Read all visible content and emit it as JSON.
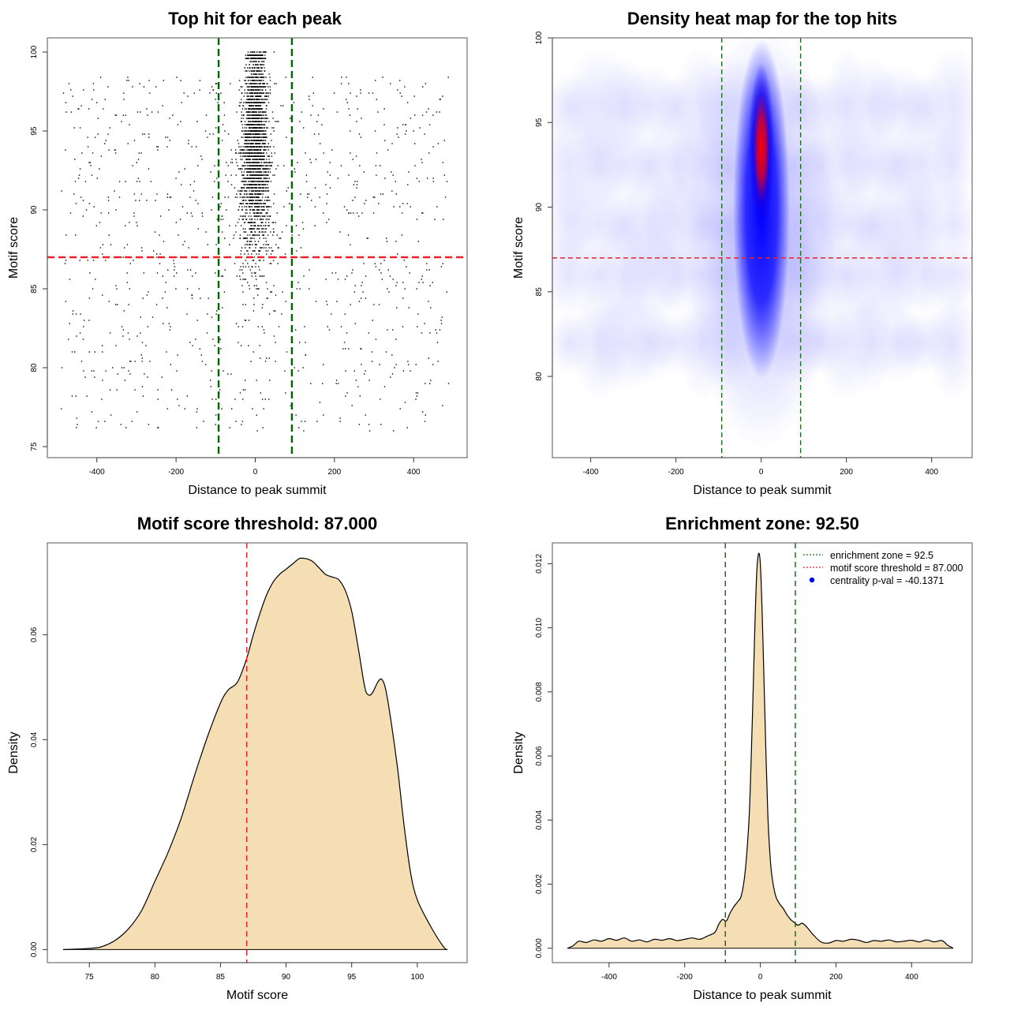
{
  "chart_data": [
    {
      "type": "scatter",
      "title": "Top hit for each peak",
      "xlabel": "Distance to peak summit",
      "ylabel": "Motif score",
      "xlim": [
        -525,
        535
      ],
      "ylim": [
        74.3,
        100.9
      ],
      "xticks": [
        -400,
        -200,
        0,
        200,
        400
      ],
      "yticks": [
        75,
        80,
        85,
        90,
        95,
        100
      ],
      "ref_lines": {
        "enrichment_zone_x": [
          -92.5,
          92.5
        ],
        "enrichment_line_color": "#006400",
        "score_threshold_y": 87,
        "threshold_line_color": "#e8232b"
      },
      "point_color": "#000000",
      "point_groups": [
        {
          "name": "central",
          "x_center": 0,
          "x_spread": 42,
          "y_range": [
            78,
            100
          ],
          "count": 2600
        },
        {
          "name": "background",
          "x_range": [
            -490,
            490
          ],
          "y_range": [
            76,
            100
          ],
          "count": 1000
        }
      ]
    },
    {
      "type": "heatmap",
      "title": "Density heat map for the top hits",
      "xlabel": "Distance to peak summit",
      "ylabel": "Motif score",
      "xlim": [
        -490,
        495
      ],
      "ylim": [
        75.2,
        100
      ],
      "xticks": [
        -400,
        -200,
        0,
        200,
        400
      ],
      "yticks": [
        80,
        85,
        90,
        95,
        100
      ],
      "ref_lines": {
        "enrichment_zone_x": [
          -92.5,
          92.5
        ],
        "enrichment_line_color": "#1d6b1d",
        "score_threshold_y": 87,
        "threshold_line_color": "#e8232b"
      },
      "color_scale": [
        "#ffffff",
        "#0000ff",
        "#ff0000"
      ],
      "density_peak": {
        "x": 0,
        "y": 93.5
      }
    },
    {
      "type": "area",
      "title": "Motif score threshold: 87.000",
      "xlabel": "Motif score",
      "ylabel": "Density",
      "xlim": [
        71.8,
        103.8
      ],
      "ylim": [
        -0.0025,
        0.0775
      ],
      "xticks": [
        75,
        80,
        85,
        90,
        95,
        100
      ],
      "yticks": [
        0.0,
        0.02,
        0.04,
        0.06
      ],
      "ytick_labels": [
        "0.00",
        "0.02",
        "0.04",
        "0.06"
      ],
      "fill_color": "#f5deb3",
      "threshold_x": 87,
      "threshold_line_color": "#e8232b",
      "x": [
        73,
        75,
        76,
        77,
        78,
        79,
        80,
        81,
        82,
        83,
        84,
        85,
        85.6,
        86.3,
        87,
        87.5,
        88,
        88.5,
        89,
        89.5,
        90,
        90.5,
        91,
        91.5,
        92,
        92.5,
        93,
        93.5,
        94,
        94.5,
        95,
        95.5,
        96,
        96.3,
        96.6,
        97,
        97.3,
        97.6,
        98,
        98.5,
        99,
        99.5,
        100,
        101,
        102,
        102.3
      ],
      "y": [
        0,
        0.0002,
        0.0006,
        0.0018,
        0.004,
        0.0075,
        0.013,
        0.0185,
        0.025,
        0.033,
        0.0405,
        0.047,
        0.0495,
        0.051,
        0.0555,
        0.06,
        0.064,
        0.0675,
        0.07,
        0.0715,
        0.0725,
        0.0735,
        0.0745,
        0.0745,
        0.074,
        0.0728,
        0.0715,
        0.071,
        0.0705,
        0.0685,
        0.0645,
        0.0575,
        0.05,
        0.0485,
        0.049,
        0.051,
        0.0515,
        0.0495,
        0.0435,
        0.0345,
        0.0235,
        0.0145,
        0.0095,
        0.0045,
        0.0005,
        0
      ]
    },
    {
      "type": "area",
      "title": "Enrichment zone: 92.50",
      "xlabel": "Distance to peak summit",
      "ylabel": "Density",
      "xlim": [
        -550,
        560
      ],
      "ylim": [
        -0.00045,
        0.01265
      ],
      "xticks": [
        -400,
        -200,
        0,
        200,
        400
      ],
      "yticks": [
        0.0,
        0.002,
        0.004,
        0.006,
        0.008,
        0.01,
        0.012
      ],
      "ytick_labels": [
        "0.000",
        "0.002",
        "0.004",
        "0.006",
        "0.008",
        "0.010",
        "0.012"
      ],
      "fill_color": "#f5deb3",
      "zone_x": [
        -92.5,
        92.5
      ],
      "zone_line_color": "#1d6b1d",
      "x": [
        -510,
        -495,
        -480,
        -460,
        -440,
        -420,
        -400,
        -380,
        -360,
        -340,
        -320,
        -300,
        -280,
        -260,
        -240,
        -220,
        -200,
        -180,
        -160,
        -140,
        -120,
        -110,
        -100,
        -90,
        -80,
        -70,
        -60,
        -50,
        -40,
        -30,
        -25,
        -20,
        -15,
        -10,
        -5,
        0,
        5,
        10,
        15,
        20,
        25,
        30,
        40,
        50,
        60,
        70,
        80,
        90,
        100,
        110,
        120,
        140,
        160,
        180,
        200,
        220,
        240,
        260,
        280,
        300,
        320,
        340,
        360,
        380,
        400,
        420,
        440,
        460,
        480,
        495,
        510
      ],
      "y": [
        0,
        8e-05,
        0.00022,
        0.00018,
        0.00026,
        0.00022,
        0.0003,
        0.00025,
        0.00032,
        0.00022,
        0.00026,
        0.0002,
        0.00028,
        0.00025,
        0.0003,
        0.00024,
        0.00028,
        0.00032,
        0.00028,
        0.00038,
        0.0005,
        0.00075,
        0.0009,
        0.00085,
        0.0011,
        0.0013,
        0.00145,
        0.00165,
        0.0024,
        0.004,
        0.0056,
        0.0076,
        0.0098,
        0.0116,
        0.0123,
        0.012,
        0.0104,
        0.0082,
        0.006,
        0.0041,
        0.003,
        0.0023,
        0.00165,
        0.0014,
        0.00125,
        0.00105,
        0.0009,
        0.0008,
        0.00072,
        0.00078,
        0.0007,
        0.00042,
        0.0002,
        0.00016,
        0.00024,
        0.00022,
        0.00028,
        0.00025,
        0.00018,
        0.00024,
        0.00022,
        0.00026,
        0.0002,
        0.00022,
        0.00025,
        0.0002,
        0.00026,
        0.0002,
        0.00024,
        0.0001,
        0
      ],
      "legend_position": "top-right",
      "legend": [
        {
          "label": "enrichment zone = 92.5",
          "color": "#1d6b1d",
          "style": "dotted-line"
        },
        {
          "label": "motif score threshold = 87.000",
          "color": "#e8232b",
          "style": "dotted-line"
        },
        {
          "label": "centrality p-val = -40.1371",
          "color": "#0000ff",
          "style": "dot"
        }
      ]
    }
  ]
}
